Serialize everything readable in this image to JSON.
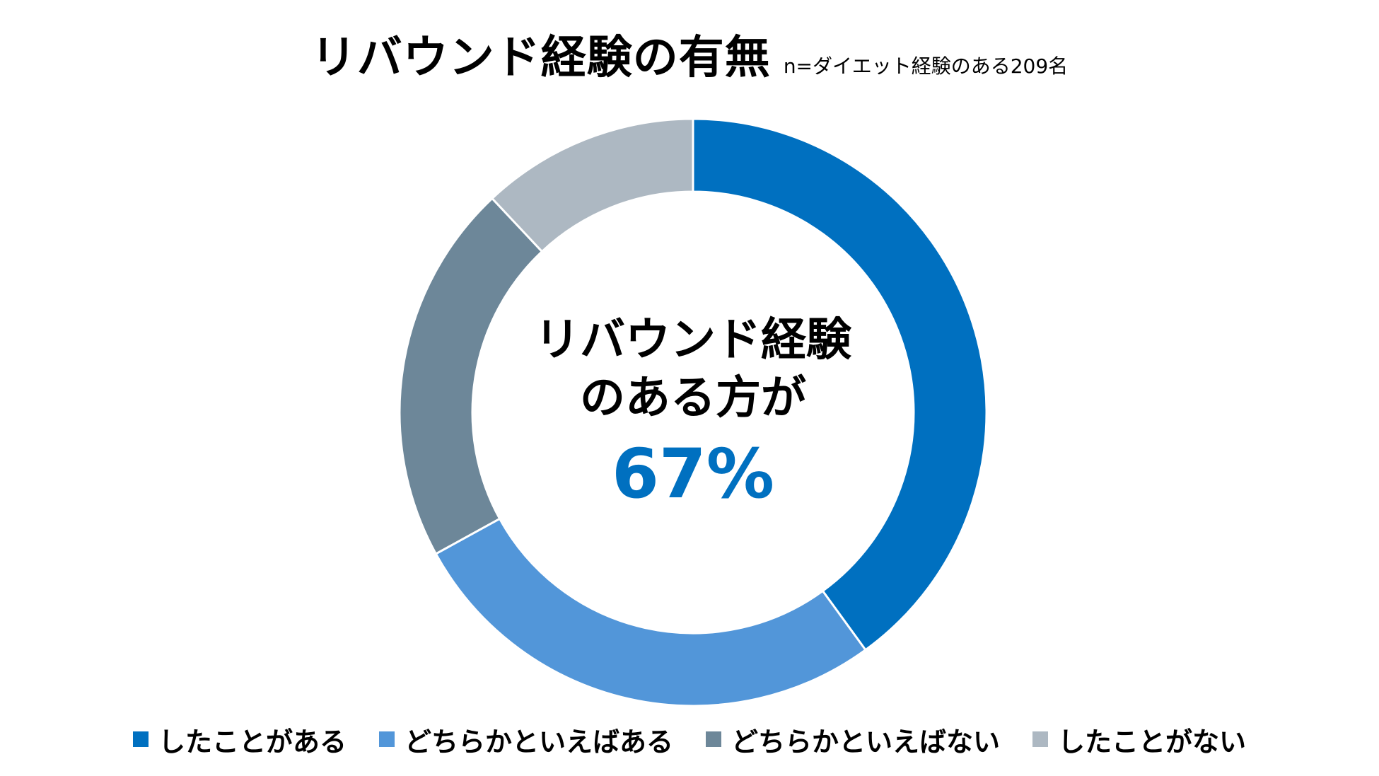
{
  "title": "リバウンド経験の有無",
  "subtitle": "n=ダイエット経験のある209名",
  "center": {
    "line1": "リバウンド経験",
    "line2": "のある方が",
    "percent": "67%"
  },
  "colors": {
    "center_percent": "#0070c0"
  },
  "chart_data": {
    "type": "pie",
    "donut": true,
    "categories": [
      "したことがある",
      "どちらかといえばある",
      "どちらかといえばない",
      "したことがない"
    ],
    "values": [
      40,
      27,
      21,
      12
    ],
    "colors": [
      "#0070c0",
      "#5296d9",
      "#6d8799",
      "#adb8c2"
    ],
    "start_angle_deg": 0,
    "direction": "clockwise",
    "legend_position": "bottom"
  }
}
